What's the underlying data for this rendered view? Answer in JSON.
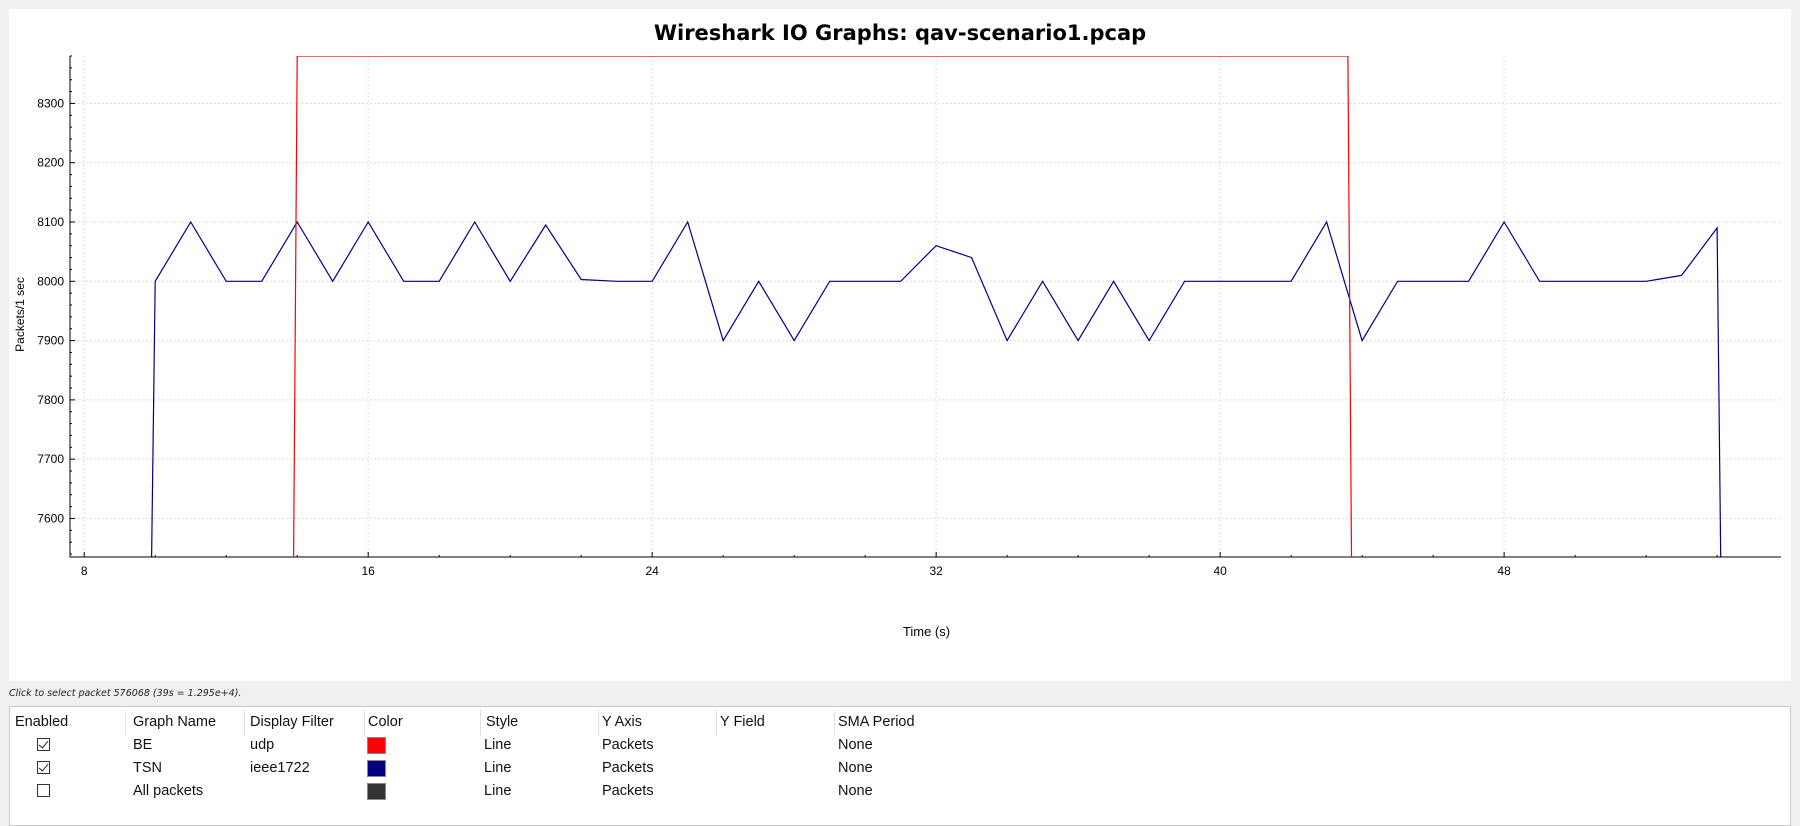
{
  "window": {
    "title": "Wireshark IO Graphs: qav-scenario1.pcap",
    "hint": "Click to select packet 576068 (39s = 1.295e+4)."
  },
  "chart_data": {
    "type": "line",
    "title": "Wireshark IO Graphs: qav-scenario1.pcap",
    "xlabel": "Time (s)",
    "ylabel": "Packets/1 sec",
    "xlim": [
      7.6,
      55.8
    ],
    "ylim": [
      7535,
      8380
    ],
    "x_ticks": [
      8,
      16,
      24,
      32,
      40,
      48
    ],
    "y_ticks": [
      7600,
      7700,
      7800,
      7900,
      8000,
      8100,
      8200,
      8300
    ],
    "grid": true,
    "series": [
      {
        "name": "TSN",
        "color": "#00008b",
        "x": [
          9.9,
          10,
          11,
          12,
          13,
          14,
          15,
          16,
          17,
          18,
          19,
          20,
          21,
          22,
          23,
          24,
          25,
          26,
          27,
          28,
          29,
          30,
          31,
          32,
          33,
          34,
          35,
          36,
          37,
          38,
          39,
          40,
          41,
          42,
          43,
          44,
          45,
          46,
          47,
          48,
          49,
          50,
          51,
          52,
          53,
          54,
          54.1
        ],
        "y": [
          7535,
          8000,
          8100,
          8000,
          8000,
          8100,
          8000,
          8100,
          8000,
          8000,
          8100,
          8000,
          8095,
          8003,
          8000,
          8000,
          8100,
          7900,
          8000,
          7900,
          8000,
          8000,
          8000,
          8060,
          8040,
          7900,
          8000,
          7900,
          8000,
          7900,
          8000,
          8000,
          8000,
          8000,
          8100,
          7900,
          8000,
          8000,
          8000,
          8100,
          8000,
          8000,
          8000,
          8000,
          8010,
          8090,
          7535
        ]
      },
      {
        "name": "BE",
        "color": "#ff0000",
        "x": [
          13.9,
          14.0,
          43.6,
          43.7
        ],
        "y": [
          7535,
          8380,
          8380,
          7535
        ]
      }
    ]
  },
  "graph_table": {
    "headers": [
      "Enabled",
      "Graph Name",
      "Display Filter",
      "Color",
      "Style",
      "Y Axis",
      "Y Field",
      "SMA Period"
    ],
    "rows": [
      {
        "enabled": true,
        "name": "BE",
        "filter": "udp",
        "color": "#ff0000",
        "style": "Line",
        "y_axis": "Packets",
        "y_field": "",
        "sma": "None"
      },
      {
        "enabled": true,
        "name": "TSN",
        "filter": "ieee1722",
        "color": "#000080",
        "style": "Line",
        "y_axis": "Packets",
        "y_field": "",
        "sma": "None"
      },
      {
        "enabled": false,
        "name": "All packets",
        "filter": "",
        "color": "#333333",
        "style": "Line",
        "y_axis": "Packets",
        "y_field": "",
        "sma": "None"
      }
    ]
  }
}
